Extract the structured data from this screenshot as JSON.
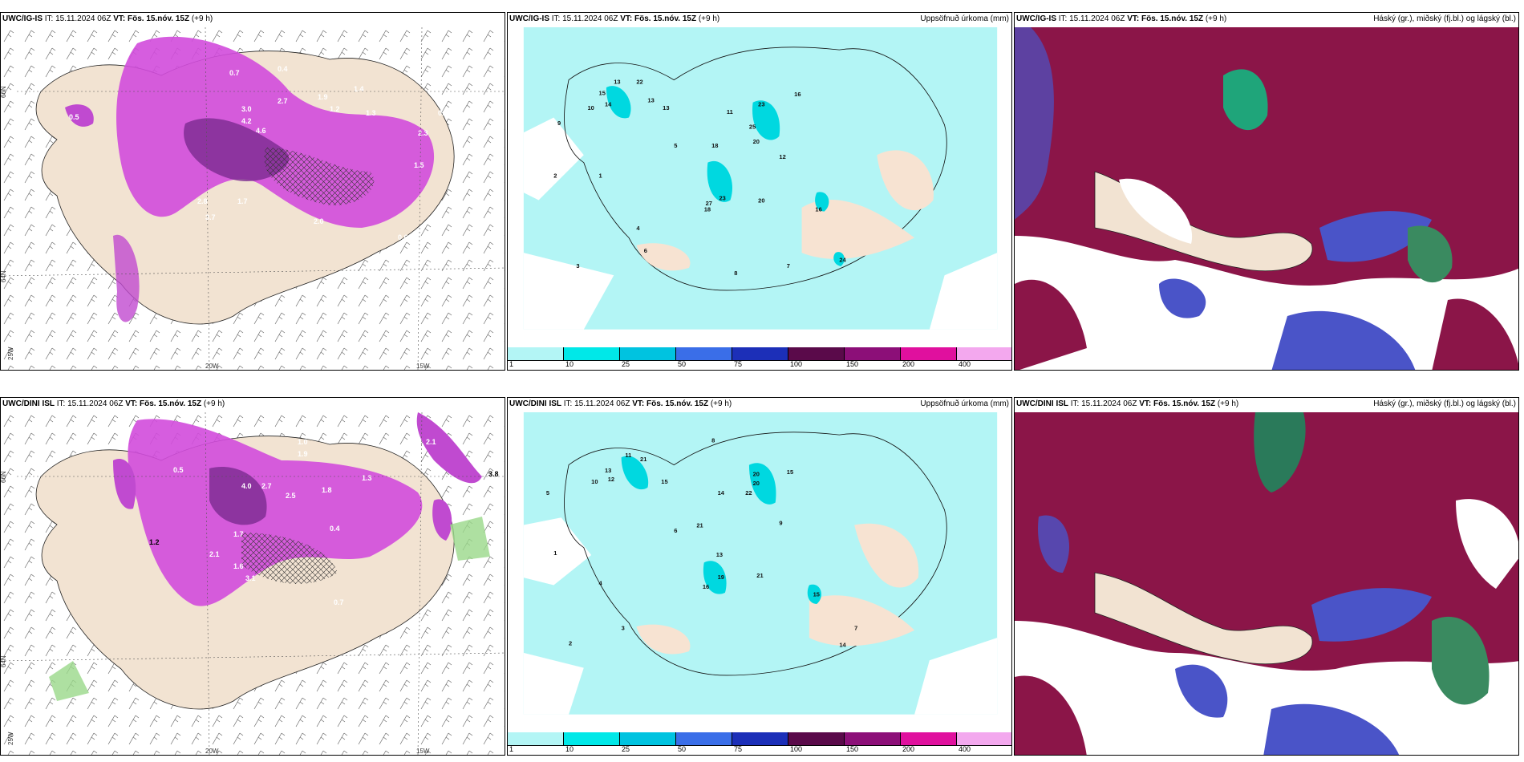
{
  "panels": [
    {
      "id": "tl",
      "model": "UWC/IG-IS",
      "it": "IT: 15.11.2024 06Z",
      "vt_label": "VT:",
      "vt": "Fös. 15.nóv. 15Z",
      "lead": "(+9 h)",
      "title_right": ""
    },
    {
      "id": "tm",
      "model": "UWC/IG-IS",
      "it": "IT: 15.11.2024 06Z",
      "vt_label": "VT:",
      "vt": "Fös. 15.nóv. 15Z",
      "lead": "(+9 h)",
      "title_right": "Uppsöfnuð úrkoma (mm)"
    },
    {
      "id": "tr",
      "model": "UWC/IG-IS",
      "it": "IT: 15.11.2024 06Z",
      "vt_label": "VT:",
      "vt": "Fös. 15.nóv. 15Z",
      "lead": "(+9 h)",
      "title_right": "Háský (gr.), miðský (fj.bl.) og lágský (bl.)"
    },
    {
      "id": "bl",
      "model": "UWC/DINI ISL",
      "it": "IT: 15.11.2024 06Z",
      "vt_label": "VT:",
      "vt": "Fös. 15.nóv. 15Z",
      "lead": "(+9 h)",
      "title_right": ""
    },
    {
      "id": "bm",
      "model": "UWC/DINI ISL",
      "it": "IT: 15.11.2024 06Z",
      "vt_label": "VT:",
      "vt": "Fös. 15.nóv. 15Z",
      "lead": "(+9 h)",
      "title_right": "Uppsöfnuð úrkoma (mm)"
    },
    {
      "id": "br",
      "model": "UWC/DINI ISL",
      "it": "IT: 15.11.2024 06Z",
      "vt_label": "VT:",
      "vt": "Fös. 15.nóv. 15Z",
      "lead": "(+9 h)",
      "title_right": "Háský (gr.), miðský (fj.bl.) og lágský (bl.)"
    }
  ],
  "axis_labels": {
    "lat66": "66N",
    "lat64": "64N",
    "lon25": "25W",
    "lon20": "20W",
    "lon15": "15W"
  },
  "legend": {
    "ticks": [
      "1",
      "10",
      "25",
      "50",
      "75",
      "100",
      "150",
      "200",
      "400"
    ],
    "colors": [
      "#b3f5f5",
      "#00e8e8",
      "#00c3e0",
      "#3a6ee8",
      "#1c2fb8",
      "#5a0a4a",
      "#8c0f78",
      "#e0109e",
      "#f3a8ee"
    ]
  },
  "precip_values_top": [
    "13",
    "22",
    "15",
    "14",
    "13",
    "13",
    "23",
    "16",
    "25",
    "20",
    "18",
    "23",
    "18",
    "27",
    "20",
    "16",
    "24",
    "10",
    "11",
    "12",
    "9",
    "5",
    "6",
    "3",
    "2",
    "1",
    "4",
    "8",
    "7"
  ],
  "precip_values_bottom": [
    "11",
    "21",
    "13",
    "12",
    "15",
    "20",
    "20",
    "22",
    "15",
    "14",
    "21",
    "13",
    "19",
    "16",
    "21",
    "15",
    "14",
    "10",
    "9",
    "8",
    "5",
    "6",
    "3",
    "2",
    "1",
    "4",
    "7"
  ],
  "wind_values_top": [
    "0.7",
    "0.4",
    "3.0",
    "4.2",
    "4.6",
    "2.7",
    "1.9",
    "1.4",
    "1.3",
    "1.2",
    "0.5",
    "2.8",
    "3.7",
    "1.7",
    "2.0",
    "2.3",
    "1.5",
    "0.6",
    "0.9"
  ],
  "wind_values_bottom": [
    "2.1",
    "1.0",
    "1.9",
    "4.0",
    "2.7",
    "2.5",
    "1.8",
    "1.3",
    "3.8",
    "1.2",
    "0.5",
    "1.7",
    "3.1",
    "2.1",
    "1.6",
    "0.4",
    "0.7"
  ]
}
